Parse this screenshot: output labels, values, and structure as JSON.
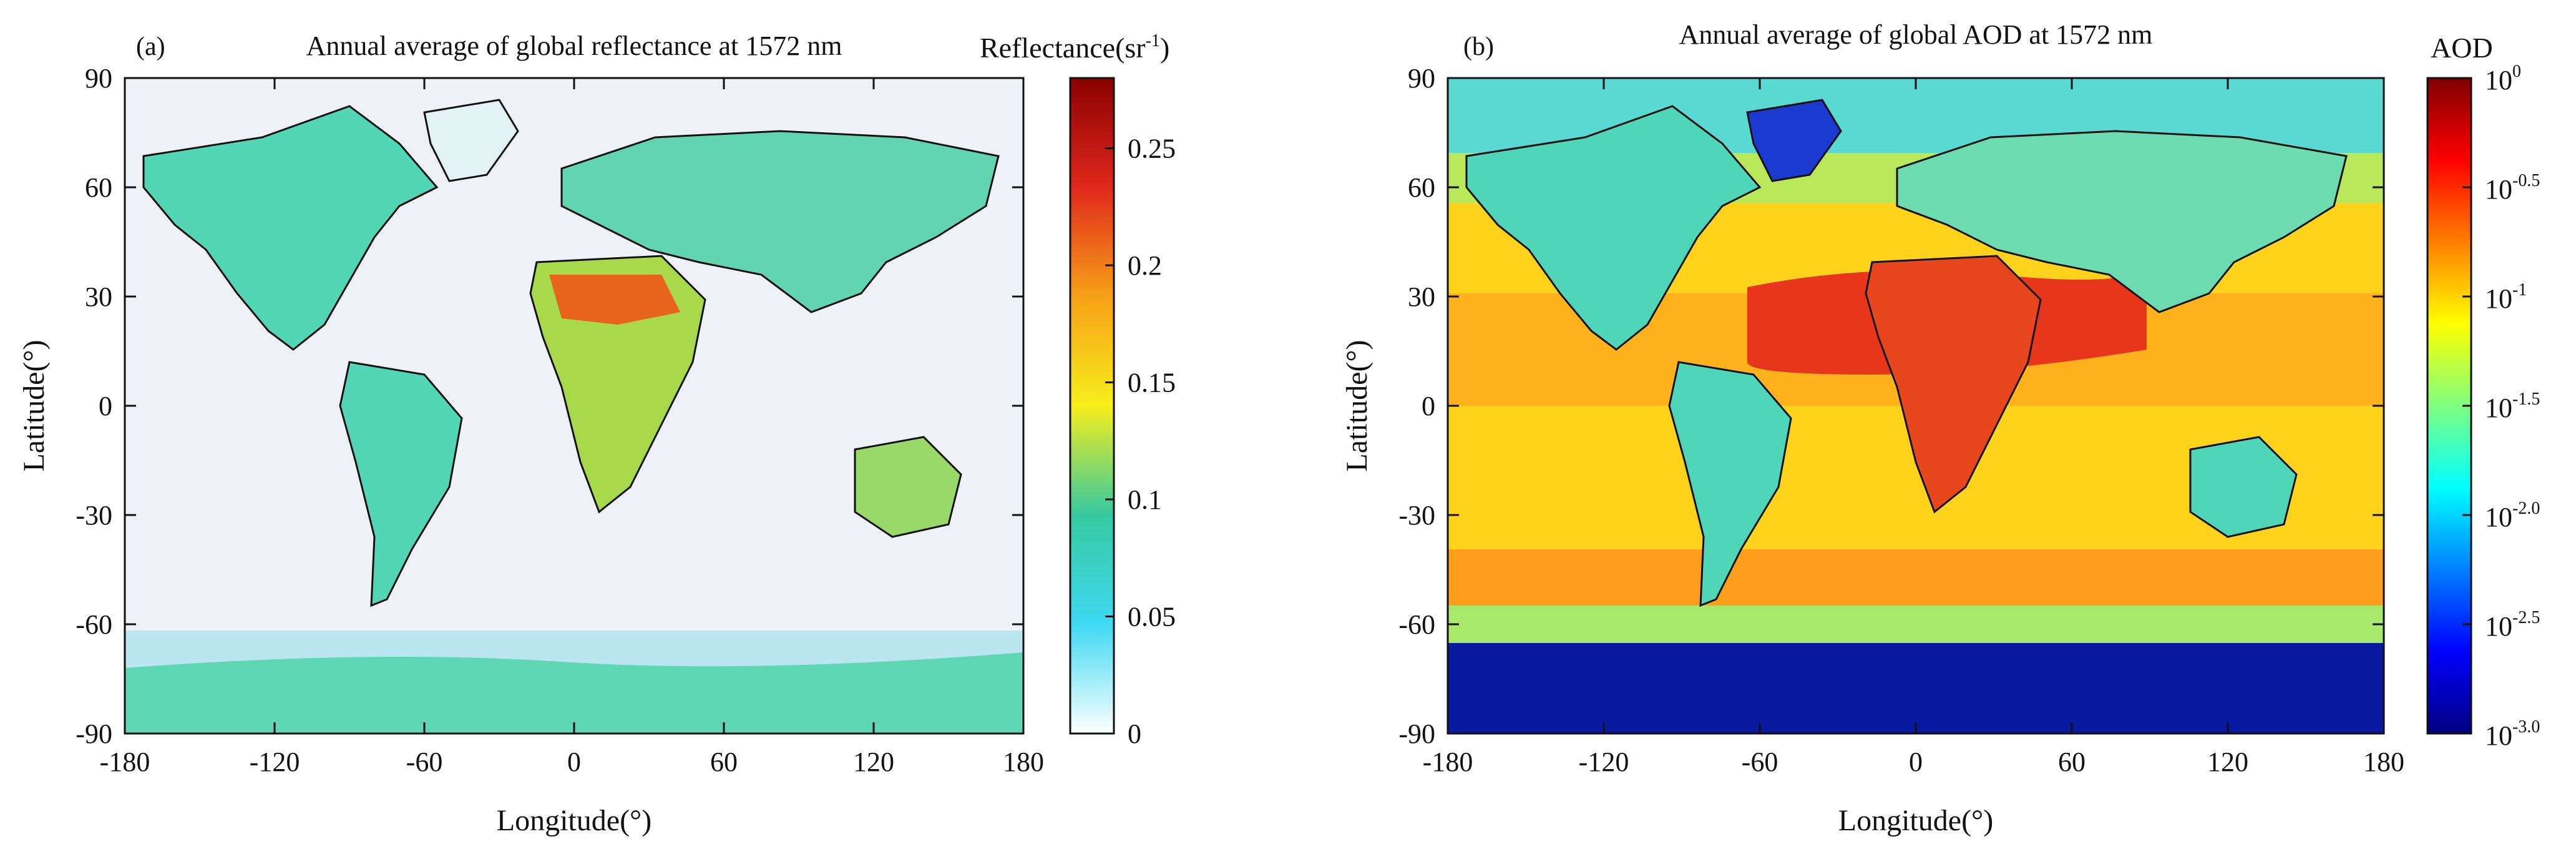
{
  "figure": {
    "panels": [
      {
        "id": "a",
        "tag": "(a)",
        "title": "Annual average of global reflectance at 1572 nm",
        "xlabel": "Longitude(°)",
        "ylabel": "Latitude(°)",
        "xticks": [
          "-180",
          "-120",
          "-60",
          "0",
          "60",
          "120",
          "180"
        ],
        "yticks": [
          "90",
          "60",
          "30",
          "0",
          "-30",
          "-60",
          "-90"
        ],
        "colorbar": {
          "label_main": "Reflectance(sr",
          "label_sup": "-1",
          "label_end": ")",
          "scale": "linear",
          "range": [
            0,
            0.28
          ],
          "ticks": [
            "0",
            "0.05",
            "0.1",
            "0.15",
            "0.2",
            "0.25"
          ],
          "tick_values": [
            0,
            0.05,
            0.1,
            0.15,
            0.2,
            0.25
          ]
        }
      },
      {
        "id": "b",
        "tag": "(b)",
        "title": "Annual average of global AOD at 1572 nm",
        "xlabel": "Longitude(°)",
        "ylabel": "Latitude(°)",
        "xticks": [
          "-180",
          "-120",
          "-60",
          "0",
          "60",
          "120",
          "180"
        ],
        "yticks": [
          "90",
          "60",
          "30",
          "0",
          "-30",
          "-60",
          "-90"
        ],
        "colorbar": {
          "label_main": "AOD",
          "scale": "log",
          "range_exponent": [
            -3.0,
            0
          ],
          "tick_base": "10",
          "tick_exponents": [
            "0",
            "-0.5",
            "-1",
            "-1.5",
            "-2.0",
            "-2.5",
            "-3.0"
          ]
        }
      }
    ]
  },
  "chart_data": [
    {
      "type": "heatmap",
      "title": "Annual average of global reflectance at 1572 nm",
      "xlabel": "Longitude(°)",
      "ylabel": "Latitude(°)",
      "xlim": [
        -180,
        180
      ],
      "ylim": [
        -90,
        90
      ],
      "x_ticks": [
        -180,
        -120,
        -60,
        0,
        60,
        120,
        180
      ],
      "y_ticks": [
        -90,
        -60,
        -30,
        0,
        30,
        60,
        90
      ],
      "colorbar": {
        "label": "Reflectance(sr-1)",
        "range": [
          0,
          0.28
        ],
        "ticks": [
          0,
          0.05,
          0.1,
          0.15,
          0.2,
          0.25
        ]
      },
      "colormap": [
        "#ffffff",
        "#3fd9f2",
        "#35c9a0",
        "#f7ee1c",
        "#f7a018",
        "#e0281c",
        "#8b0000"
      ],
      "grid": false,
      "legend": "colorbar-right"
    },
    {
      "type": "heatmap",
      "title": "Annual average of global AOD at 1572 nm",
      "xlabel": "Longitude(°)",
      "ylabel": "Latitude(°)",
      "xlim": [
        -180,
        180
      ],
      "ylim": [
        -90,
        90
      ],
      "x_ticks": [
        -180,
        -120,
        -60,
        0,
        60,
        120,
        180
      ],
      "y_ticks": [
        -90,
        -60,
        -30,
        0,
        30,
        60,
        90
      ],
      "colorbar": {
        "label": "AOD",
        "scale": "log",
        "range": [
          0.001,
          1
        ],
        "ticks": [
          0.001,
          0.00316,
          0.01,
          0.0316,
          0.1,
          0.316,
          1
        ]
      },
      "colormap": [
        "#00007f",
        "#0000ff",
        "#007fff",
        "#00ffff",
        "#7fff7f",
        "#ffff00",
        "#ff7f00",
        "#ff0000",
        "#7f0000"
      ],
      "grid": false,
      "legend": "colorbar-right"
    }
  ],
  "colors": {
    "jet": [
      "#00007f",
      "#0000ff",
      "#007fff",
      "#00ffff",
      "#7fff7f",
      "#ffff00",
      "#ff7f00",
      "#ff0000",
      "#7f0000"
    ],
    "reflect": [
      "#ffffff",
      "#3fd9f2",
      "#35c9a0",
      "#f7ee1c",
      "#f7a018",
      "#e0281c",
      "#8b0000"
    ],
    "ocean_a": "#eef1f6",
    "land_a": "#52d6b6",
    "ice_a": "#5ad4b0",
    "ocean_b": "#ffd21c",
    "land_b": "#4fd6b8"
  }
}
